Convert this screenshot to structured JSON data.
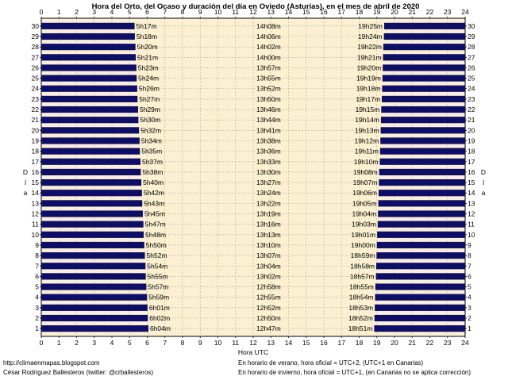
{
  "chart_data": {
    "type": "bar",
    "title": "Hora del Orto, del Ocaso y duración del día en Oviedo (Asturias), en el mes de abril de 2020",
    "xlabel": "Hora UTC",
    "ylabel": "Día",
    "xlim": [
      0,
      24
    ],
    "x_ticks": [
      "0",
      "1",
      "2",
      "3",
      "4",
      "5",
      "6",
      "7",
      "8",
      "9",
      "10",
      "11",
      "12",
      "13",
      "14",
      "15",
      "16",
      "17",
      "18",
      "19",
      "20",
      "21",
      "22",
      "23",
      "24"
    ],
    "grid": true,
    "days": [
      "1",
      "2",
      "3",
      "4",
      "5",
      "6",
      "7",
      "8",
      "9",
      "10",
      "11",
      "12",
      "13",
      "14",
      "15",
      "16",
      "17",
      "18",
      "19",
      "20",
      "21",
      "22",
      "23",
      "24",
      "25",
      "26",
      "27",
      "28",
      "29",
      "30"
    ],
    "sunrise_labels": [
      "6h04m",
      "6h02m",
      "6h01m",
      "5h59m",
      "5h57m",
      "5h55m",
      "5h54m",
      "5h52m",
      "5h50m",
      "5h48m",
      "5h47m",
      "5h45m",
      "5h43m",
      "5h42m",
      "5h40m",
      "5h38m",
      "5h37m",
      "5h35m",
      "5h34m",
      "5h32m",
      "5h30m",
      "5h29m",
      "5h27m",
      "5h26m",
      "5h24m",
      "5h23m",
      "5h21m",
      "5h20m",
      "5h18m",
      "5h17m"
    ],
    "sunset_labels": [
      "18h51m",
      "18h52m",
      "18h53m",
      "18h54m",
      "18h55m",
      "18h57m",
      "18h58m",
      "18h59m",
      "19h00m",
      "19h01m",
      "19h03m",
      "19h04m",
      "19h05m",
      "19h06m",
      "19h07m",
      "19h08m",
      "19h10m",
      "19h11m",
      "19h12m",
      "19h13m",
      "19h14m",
      "19h15m",
      "19h17m",
      "19h18m",
      "19h19m",
      "19h20m",
      "19h21m",
      "19h22m",
      "19h24m",
      "19h25m"
    ],
    "duration_labels": [
      "12h47m",
      "12h50m",
      "12h52m",
      "12h55m",
      "12h58m",
      "13h02m",
      "13h04m",
      "13h07m",
      "13h10m",
      "13h13m",
      "13h16m",
      "13h19m",
      "13h22m",
      "13h24m",
      "13h27m",
      "13h30m",
      "13h33m",
      "13h36m",
      "13h38m",
      "13h41m",
      "13h44m",
      "13h46m",
      "13h50m",
      "13h52m",
      "13h55m",
      "13h57m",
      "14h00m",
      "14h02m",
      "14h06m",
      "14h08m"
    ],
    "colors": {
      "bar": "#0d0d6b",
      "plot_bg": "#fbf0cf",
      "grid": "#b0b0b0"
    }
  },
  "footer": {
    "blog": "http://climaenmapas.blogspot.com",
    "author": "César Rodríguez Ballesteros (twitter: @crballesteros)",
    "note_summer": "En horario de verano, hora oficial = UTC+2, (UTC+1 en Canarias)",
    "note_winter": "En horario de invierno, hora oficial = UTC+1, (en Canarias no se aplica corrección)"
  }
}
